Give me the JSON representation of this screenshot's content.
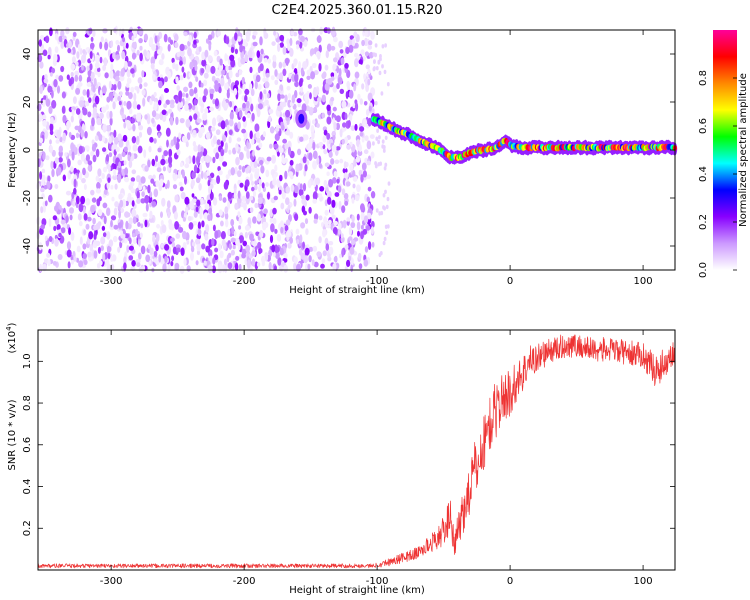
{
  "figure": {
    "title": "C2E4.2025.360.01.15.R20"
  },
  "chart_data": [
    {
      "type": "heatmap",
      "xlabel": "Height of straight line (km)",
      "ylabel": "Frequency (Hz)",
      "xlim": [
        -355,
        124
      ],
      "ylim": [
        -50,
        50
      ],
      "xticks": [
        -300,
        -200,
        -100,
        0,
        100
      ],
      "yticks": [
        -40,
        -20,
        0,
        20,
        40
      ],
      "colorbar": {
        "label": "Normalized spectral amplitude",
        "range": [
          0,
          1
        ],
        "ticks": [
          0.0,
          0.2,
          0.4,
          0.6,
          0.8
        ],
        "colors": [
          "#ffffff",
          "#cc99ff",
          "#8800ff",
          "#0000ff",
          "#00ffff",
          "#00ff00",
          "#ffff00",
          "#ff8800",
          "#ff0000",
          "#ff0099"
        ]
      },
      "noise_region": {
        "x_range": [
          -355,
          -103
        ],
        "freq_range": [
          -50,
          50
        ],
        "amplitude": "low (0.0-0.2)"
      },
      "hotspot": {
        "x": -157,
        "freq": 13,
        "amplitude": 0.3
      },
      "signal_track": {
        "x": [
          -103,
          -95,
          -85,
          -75,
          -65,
          -55,
          -45,
          -38,
          -30,
          -20,
          -10,
          -4,
          0,
          10,
          30,
          60,
          90,
          110,
          124
        ],
        "freq": [
          13,
          11,
          8,
          6,
          3,
          1,
          -3,
          -3,
          -1,
          0,
          1,
          4,
          2,
          1,
          1,
          1,
          1,
          1,
          1
        ],
        "amplitude_range": [
          0.3,
          1.0
        ]
      }
    },
    {
      "type": "line",
      "xlabel": "Height of straight line (km)",
      "ylabel": "SNR (10 * v/v)",
      "y_scale_label": "(x10",
      "y_scale_exp": "4",
      "y_scale_close": ")",
      "xlim": [
        -355,
        124
      ],
      "ylim": [
        0,
        1.15
      ],
      "xticks": [
        -300,
        -200,
        -100,
        0,
        100
      ],
      "yticks": [
        0.2,
        0.4,
        0.6,
        0.8,
        1.0
      ],
      "series": [
        {
          "name": "SNR",
          "color": "#ee3333",
          "x": [
            -355,
            -250,
            -150,
            -103,
            -90,
            -70,
            -55,
            -48,
            -45,
            -42,
            -38,
            -32,
            -28,
            -22,
            -18,
            -12,
            -6,
            0,
            5,
            15,
            30,
            45,
            60,
            80,
            100,
            110,
            124
          ],
          "y": [
            0.02,
            0.02,
            0.02,
            0.02,
            0.04,
            0.08,
            0.15,
            0.2,
            0.3,
            0.1,
            0.22,
            0.35,
            0.45,
            0.55,
            0.65,
            0.75,
            0.82,
            0.85,
            0.9,
            1.0,
            1.05,
            1.08,
            1.06,
            1.05,
            1.03,
            0.95,
            1.05
          ],
          "noise": [
            0.01,
            0.01,
            0.01,
            0.01,
            0.02,
            0.03,
            0.05,
            0.08,
            0.1,
            0.06,
            0.1,
            0.12,
            0.14,
            0.14,
            0.14,
            0.14,
            0.12,
            0.12,
            0.1,
            0.08,
            0.06,
            0.06,
            0.06,
            0.06,
            0.06,
            0.08,
            0.06
          ]
        }
      ]
    }
  ]
}
